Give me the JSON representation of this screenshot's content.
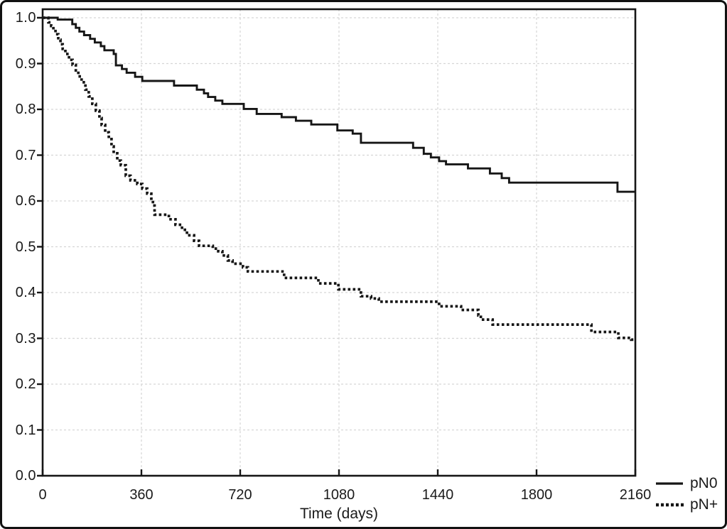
{
  "chart_data": {
    "type": "line",
    "subtype": "kaplan-meier-step-curves",
    "title": "",
    "xlabel": "Time (days)",
    "ylabel": "",
    "xlim": [
      0,
      2160
    ],
    "ylim": [
      0.0,
      1.0
    ],
    "xticks": [
      0,
      360,
      720,
      1080,
      1440,
      1800,
      2160
    ],
    "xtick_labels": [
      "0",
      "360",
      "720",
      "1080",
      "1440",
      "1800",
      "2160"
    ],
    "yticks": [
      1.0,
      0.9,
      0.8,
      0.7,
      0.6,
      0.5,
      0.4,
      0.3,
      0.2,
      0.1,
      0.0
    ],
    "ytick_labels": [
      "1.0",
      "0.9",
      "0.8",
      "0.7",
      "0.6",
      "0.5",
      "0.4",
      "0.3",
      "0.2",
      "0.1",
      "0.0"
    ],
    "grid": "dashed-light-gray-horizontal-and-vertical",
    "legend_position": "bottom-right-outside",
    "colors": {
      "curves": "#161616",
      "grid": "#d6d6d6",
      "frame": "#161616",
      "background": "#ffffff"
    },
    "series": [
      {
        "name": "pN0",
        "style": "solid",
        "color": "#161616",
        "t_end": 2160,
        "points": [
          [
            0,
            1.0
          ],
          [
            55,
            0.996
          ],
          [
            108,
            0.986
          ],
          [
            121,
            0.978
          ],
          [
            134,
            0.97
          ],
          [
            151,
            0.962
          ],
          [
            173,
            0.954
          ],
          [
            190,
            0.946
          ],
          [
            212,
            0.938
          ],
          [
            225,
            0.929
          ],
          [
            259,
            0.921
          ],
          [
            267,
            0.896
          ],
          [
            289,
            0.888
          ],
          [
            306,
            0.88
          ],
          [
            337,
            0.871
          ],
          [
            363,
            0.862
          ],
          [
            479,
            0.852
          ],
          [
            562,
            0.843
          ],
          [
            588,
            0.835
          ],
          [
            603,
            0.827
          ],
          [
            629,
            0.819
          ],
          [
            655,
            0.812
          ],
          [
            733,
            0.801
          ],
          [
            780,
            0.79
          ],
          [
            871,
            0.783
          ],
          [
            923,
            0.775
          ],
          [
            979,
            0.767
          ],
          [
            1074,
            0.754
          ],
          [
            1130,
            0.747
          ],
          [
            1160,
            0.727
          ],
          [
            1350,
            0.716
          ],
          [
            1389,
            0.703
          ],
          [
            1415,
            0.695
          ],
          [
            1445,
            0.687
          ],
          [
            1470,
            0.68
          ],
          [
            1550,
            0.671
          ],
          [
            1630,
            0.66
          ],
          [
            1673,
            0.65
          ],
          [
            1700,
            0.64
          ],
          [
            2095,
            0.62
          ]
        ]
      },
      {
        "name": "pN+",
        "style": "dotted",
        "color": "#161616",
        "t_end": 2156,
        "points": [
          [
            0,
            1.0
          ],
          [
            21,
            0.99
          ],
          [
            31,
            0.982
          ],
          [
            39,
            0.974
          ],
          [
            47,
            0.964
          ],
          [
            57,
            0.952
          ],
          [
            65,
            0.942
          ],
          [
            73,
            0.932
          ],
          [
            83,
            0.921
          ],
          [
            96,
            0.908
          ],
          [
            109,
            0.897
          ],
          [
            121,
            0.885
          ],
          [
            130,
            0.872
          ],
          [
            142,
            0.859
          ],
          [
            156,
            0.843
          ],
          [
            168,
            0.828
          ],
          [
            181,
            0.812
          ],
          [
            194,
            0.797
          ],
          [
            207,
            0.781
          ],
          [
            215,
            0.766
          ],
          [
            228,
            0.75
          ],
          [
            241,
            0.735
          ],
          [
            251,
            0.719
          ],
          [
            259,
            0.704
          ],
          [
            272,
            0.688
          ],
          [
            285,
            0.678
          ],
          [
            303,
            0.655
          ],
          [
            320,
            0.645
          ],
          [
            345,
            0.637
          ],
          [
            363,
            0.627
          ],
          [
            381,
            0.616
          ],
          [
            396,
            0.605
          ],
          [
            402,
            0.59
          ],
          [
            408,
            0.57
          ],
          [
            460,
            0.56
          ],
          [
            484,
            0.548
          ],
          [
            508,
            0.537
          ],
          [
            526,
            0.525
          ],
          [
            552,
            0.513
          ],
          [
            570,
            0.502
          ],
          [
            620,
            0.496
          ],
          [
            640,
            0.49
          ],
          [
            655,
            0.481
          ],
          [
            675,
            0.47
          ],
          [
            692,
            0.463
          ],
          [
            730,
            0.455
          ],
          [
            748,
            0.446
          ],
          [
            880,
            0.432
          ],
          [
            1005,
            0.42
          ],
          [
            1078,
            0.407
          ],
          [
            1160,
            0.392
          ],
          [
            1197,
            0.387
          ],
          [
            1225,
            0.38
          ],
          [
            1445,
            0.37
          ],
          [
            1525,
            0.362
          ],
          [
            1588,
            0.35
          ],
          [
            1597,
            0.341
          ],
          [
            1640,
            0.33
          ],
          [
            2000,
            0.314
          ],
          [
            2098,
            0.301
          ],
          [
            2145,
            0.297
          ]
        ]
      }
    ]
  }
}
